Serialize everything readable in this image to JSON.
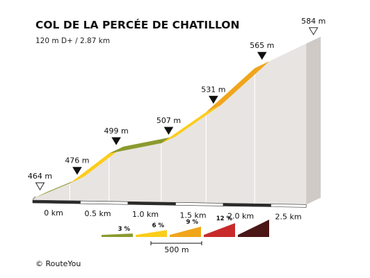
{
  "chart_data": {
    "type": "area",
    "style": "3d-elevation-profile",
    "title": "COL DE LA PERCÉE DE CHATILLON",
    "subtitle": "120 m D+ / 2.87 km",
    "x_unit": "km",
    "y_unit": "m",
    "points": [
      {
        "km": 0.0,
        "elevation": 464,
        "label": "464 m",
        "marker": "start"
      },
      {
        "km": 0.39,
        "elevation": 476,
        "label": "476 m",
        "marker": "split"
      },
      {
        "km": 0.8,
        "elevation": 499,
        "label": "499 m",
        "marker": "split"
      },
      {
        "km": 1.35,
        "elevation": 507,
        "label": "507 m",
        "marker": "split"
      },
      {
        "km": 1.82,
        "elevation": 531,
        "label": "531 m",
        "marker": "split"
      },
      {
        "km": 2.33,
        "elevation": 565,
        "label": "565 m",
        "marker": "split"
      },
      {
        "km": 2.87,
        "elevation": 584,
        "label": "584 m",
        "marker": "finish"
      }
    ],
    "segment_colors": [
      "#8b9a2e",
      "#fccd1a",
      "#8b9a2e",
      "#fccd1a",
      "#f0a51b",
      "#fccd1a"
    ],
    "x_ticks": [
      {
        "km": 0,
        "label": "0 km"
      },
      {
        "km": 0.5,
        "label": "0.5 km"
      },
      {
        "km": 1.0,
        "label": "1.0 km"
      },
      {
        "km": 1.5,
        "label": "1.5 km"
      },
      {
        "km": 2.0,
        "label": "2.0 km"
      },
      {
        "km": 2.5,
        "label": "2.5 km"
      }
    ],
    "legend": [
      {
        "label": "3 %",
        "color": "#8b9a2e"
      },
      {
        "label": "6 %",
        "color": "#fccd1a"
      },
      {
        "label": "9 %",
        "color": "#f0a51b"
      },
      {
        "label": "12 %",
        "color": "#c82a2a"
      },
      {
        "label": "",
        "color": "#4a1616"
      }
    ],
    "scale_label": "500 m",
    "copyright": "© RouteYou"
  }
}
